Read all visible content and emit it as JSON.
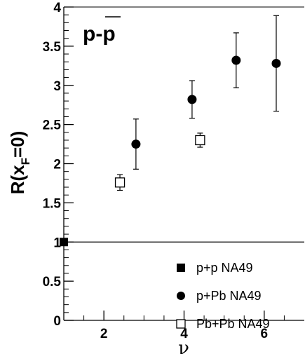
{
  "chart_data": {
    "type": "scatter",
    "xlabel": "ν",
    "ylabel_main": "R(x",
    "ylabel_sub": "F",
    "ylabel_tail": "=0)",
    "annotation": "p-p",
    "xlim": [
      1,
      7
    ],
    "ylim": [
      0,
      4
    ],
    "xticks": [
      "2",
      "4",
      "6"
    ],
    "yticks": [
      "0",
      "0.5",
      "1",
      "1.5",
      "2",
      "2.5",
      "3",
      "3.5",
      "4"
    ],
    "reference_line_y": 1,
    "legend_position": "bottom-right",
    "series": [
      {
        "name": "p+p   NA49",
        "marker": "filled-square",
        "points": [
          {
            "x": 1.0,
            "y": 1.0,
            "err": 0
          }
        ]
      },
      {
        "name": "p+Pb  NA49",
        "marker": "filled-circle",
        "points": [
          {
            "x": 2.8,
            "y": 2.25,
            "err_low": 0.32,
            "err_high": 0.32
          },
          {
            "x": 4.2,
            "y": 2.82,
            "err_low": 0.24,
            "err_high": 0.24
          },
          {
            "x": 5.3,
            "y": 3.32,
            "err_low": 0.35,
            "err_high": 0.35
          },
          {
            "x": 6.3,
            "y": 3.28,
            "err_low": 0.61,
            "err_high": 0.61
          }
        ]
      },
      {
        "name": "Pb+Pb NA49",
        "marker": "open-square",
        "points": [
          {
            "x": 2.4,
            "y": 1.76,
            "err_low": 0.1,
            "err_high": 0.1
          },
          {
            "x": 4.4,
            "y": 2.3,
            "err_low": 0.09,
            "err_high": 0.09
          }
        ]
      }
    ]
  }
}
